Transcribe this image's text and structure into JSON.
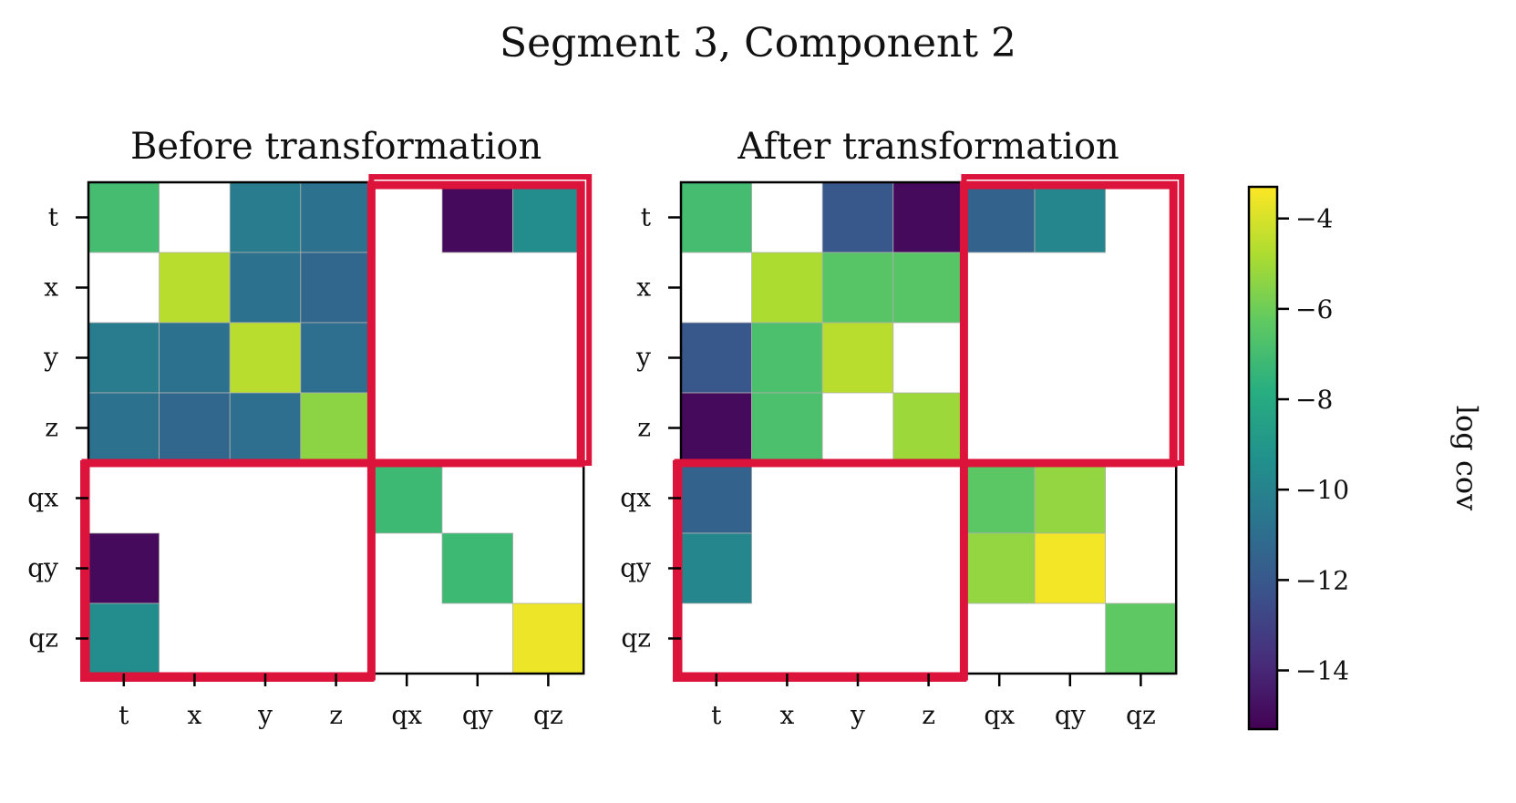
{
  "figure_title": "Segment 3, Component 2",
  "chart_data": [
    {
      "type": "heatmap",
      "title": "Before transformation",
      "row_labels": [
        "t",
        "x",
        "y",
        "z",
        "qx",
        "qy",
        "qz"
      ],
      "col_labels": [
        "t",
        "x",
        "y",
        "z",
        "qx",
        "qy",
        "qz"
      ],
      "values": [
        [
          -7.0,
          null,
          -10.3,
          -10.8,
          null,
          -15.0,
          -9.5
        ],
        [
          null,
          -4.6,
          -10.8,
          -11.3,
          null,
          null,
          null
        ],
        [
          -10.3,
          -10.8,
          -4.6,
          -11.0,
          null,
          null,
          null
        ],
        [
          -10.8,
          -11.3,
          -11.0,
          -5.4,
          null,
          null,
          null
        ],
        [
          null,
          null,
          null,
          null,
          -7.2,
          null,
          null
        ],
        [
          -15.0,
          null,
          null,
          null,
          null,
          -7.2,
          null
        ],
        [
          -9.5,
          null,
          null,
          null,
          null,
          null,
          -3.6
        ]
      ],
      "highlight_blocks": [
        "pose-quaternion cross blocks"
      ],
      "highlight_color": "#dc143c",
      "colormap": "viridis"
    },
    {
      "type": "heatmap",
      "title": "After transformation",
      "row_labels": [
        "t",
        "x",
        "y",
        "z",
        "qx",
        "qy",
        "qz"
      ],
      "col_labels": [
        "t",
        "x",
        "y",
        "z",
        "qx",
        "qy",
        "qz"
      ],
      "values": [
        [
          -7.0,
          null,
          -12.0,
          -15.0,
          -11.5,
          -9.8,
          null
        ],
        [
          null,
          -4.8,
          -6.5,
          -6.5,
          null,
          null,
          null
        ],
        [
          -12.0,
          -6.8,
          -4.6,
          null,
          null,
          null,
          null
        ],
        [
          -15.0,
          -6.8,
          null,
          -5.1,
          null,
          null,
          null
        ],
        [
          -11.5,
          null,
          null,
          null,
          -6.4,
          -5.3,
          null
        ],
        [
          -9.8,
          null,
          null,
          null,
          -5.3,
          -3.5,
          null
        ],
        [
          null,
          null,
          null,
          null,
          null,
          null,
          -6.3
        ]
      ],
      "highlight_color": "#dc143c",
      "colormap": "viridis"
    }
  ],
  "colorbar": {
    "label": "log cov",
    "range": [
      -15.3,
      -3.3
    ],
    "ticks": [
      -4,
      -6,
      -8,
      -10,
      -12,
      -14
    ],
    "tick_labels": [
      "−4",
      "−6",
      "−8",
      "−10",
      "−12",
      "−14"
    ]
  }
}
